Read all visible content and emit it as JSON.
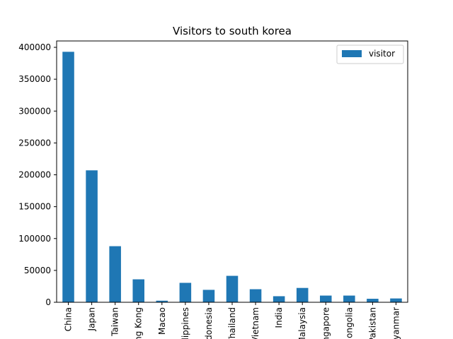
{
  "chart_data": {
    "type": "bar",
    "title": "Visitors to south korea",
    "xlabel": "",
    "ylabel": "",
    "categories": [
      "China",
      "Japan",
      "Taiwan",
      "Hong Kong",
      "Macao",
      "Philippines",
      "Indonesia",
      "Thailand",
      "Vietnam",
      "India",
      "Malaysia",
      "Singapore",
      "Mongolia",
      "Pakistan",
      "Myanmar"
    ],
    "series": [
      {
        "name": "visitor",
        "color": "#1f77b4",
        "values": [
          393000,
          207000,
          88000,
          36000,
          2500,
          30500,
          19500,
          41500,
          20500,
          9500,
          22500,
          10500,
          10500,
          5500,
          6000
        ]
      }
    ],
    "ylim": [
      0,
      410000
    ],
    "yticks": [
      0,
      50000,
      100000,
      150000,
      200000,
      250000,
      300000,
      350000,
      400000
    ],
    "grid": false,
    "legend_position": "top-right"
  }
}
